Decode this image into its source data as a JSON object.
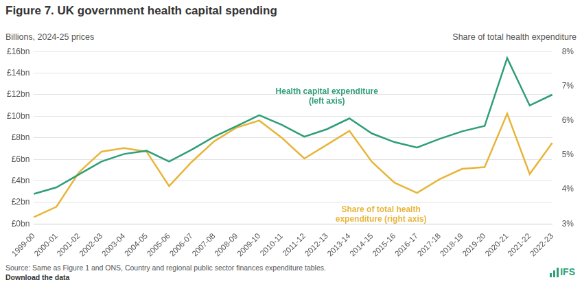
{
  "chart_data": {
    "type": "line",
    "title": "Figure 7. UK government health capital spending",
    "y_label": "Billions, 2024-25 prices",
    "y2_label": "Share of total health expenditure",
    "source": "Source: Same as Figure 1 and ONS, Country and regional public sector finances expenditure tables.",
    "download": "Download the data",
    "logo": "IFS",
    "categories": [
      "1999-00",
      "2000-01",
      "2001-02",
      "2002-03",
      "2003-04",
      "2004-05",
      "2005-06",
      "2006-07",
      "2007-08",
      "2008-09",
      "2009-10",
      "2010-11",
      "2011-12",
      "2012-13",
      "2013-14",
      "2014-15",
      "2015-16",
      "2016-17",
      "2017-18",
      "2018-19",
      "2019-20",
      "2020-21",
      "2021-22",
      "2022-23"
    ],
    "series": [
      {
        "name": "Health capital expenditure (left axis)",
        "color": "#2e9e78",
        "axis": "y",
        "values": [
          2.8,
          3.4,
          4.6,
          5.8,
          6.5,
          6.8,
          5.8,
          6.9,
          8.1,
          9.1,
          10.1,
          9.2,
          8.1,
          8.8,
          9.8,
          8.4,
          7.6,
          7.1,
          7.9,
          8.6,
          9.1,
          15.4,
          11.0,
          12.0
        ]
      },
      {
        "name": "Share of total health expenditure (right axis)",
        "color": "#e8b53a",
        "axis": "y2",
        "values": [
          3.2,
          3.5,
          4.5,
          5.1,
          5.2,
          5.1,
          4.1,
          4.8,
          5.4,
          5.8,
          6.0,
          5.5,
          4.9,
          5.3,
          5.7,
          4.8,
          4.2,
          3.9,
          4.3,
          4.6,
          4.65,
          6.2,
          4.45,
          5.35
        ]
      }
    ],
    "ylim": [
      0,
      16
    ],
    "yticks": [
      {
        "value": 0,
        "label": "£0bn"
      },
      {
        "value": 2,
        "label": "£2bn"
      },
      {
        "value": 4,
        "label": "£4bn"
      },
      {
        "value": 6,
        "label": "£6bn"
      },
      {
        "value": 8,
        "label": "£8bn"
      },
      {
        "value": 10,
        "label": "£10bn"
      },
      {
        "value": 12,
        "label": "£12bn"
      },
      {
        "value": 14,
        "label": "£14bn"
      },
      {
        "value": 16,
        "label": "£16bn"
      }
    ],
    "y2lim": [
      3,
      8
    ],
    "y2ticks": [
      {
        "value": 3,
        "label": "3%"
      },
      {
        "value": 4,
        "label": "4%"
      },
      {
        "value": 5,
        "label": "5%"
      },
      {
        "value": 6,
        "label": "6%"
      },
      {
        "value": 7,
        "label": "7%"
      },
      {
        "value": 8,
        "label": "8%"
      }
    ],
    "grid": true
  }
}
